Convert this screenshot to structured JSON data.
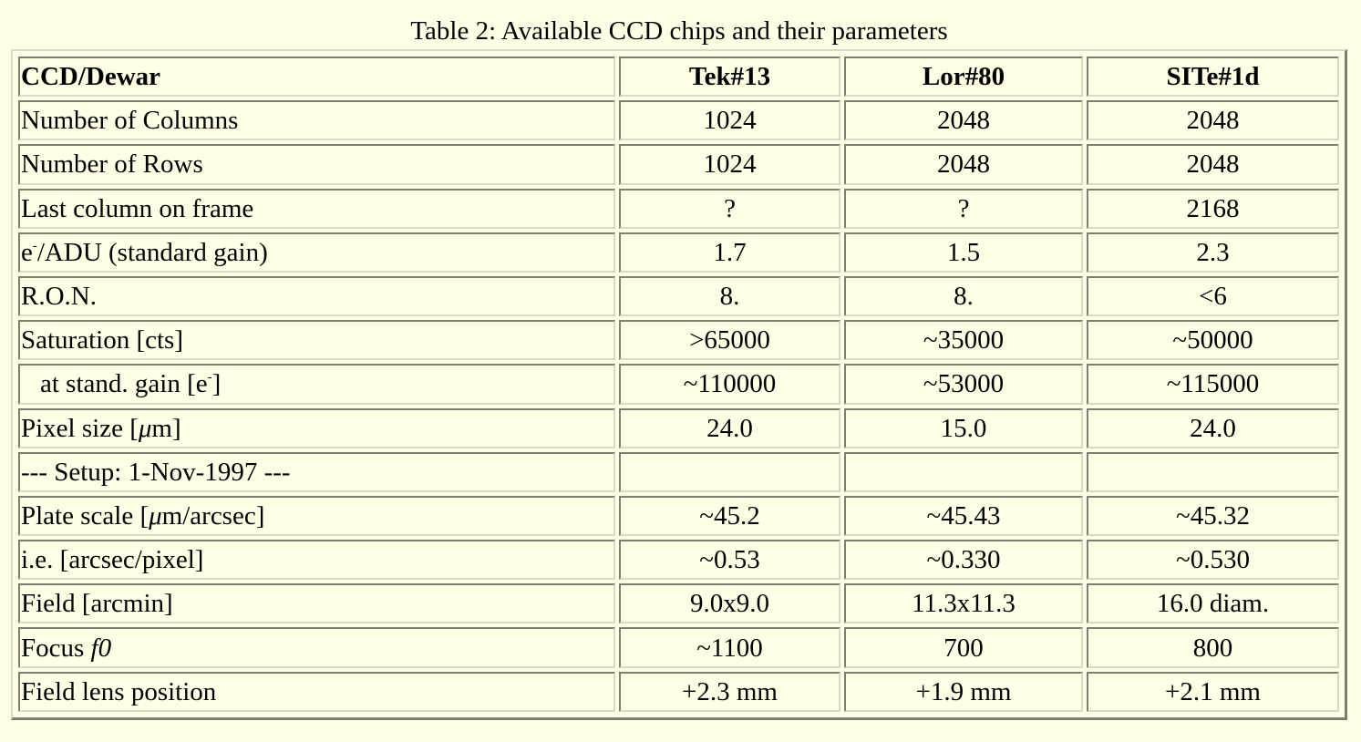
{
  "caption": "Table 2: Available CCD chips and their parameters",
  "header": {
    "label": "CCD/Dewar",
    "columns": [
      "Tek#13",
      "Lor#80",
      "SITe#1d"
    ]
  },
  "rows": [
    {
      "label": "Number of Columns",
      "values": [
        "1024",
        "2048",
        "2048"
      ]
    },
    {
      "label": "Number of Rows",
      "values": [
        "1024",
        "2048",
        "2048"
      ]
    },
    {
      "label": "Last column on frame",
      "values": [
        "?",
        "?",
        "2168"
      ]
    },
    {
      "label_pre": "e",
      "label_sup": "-",
      "label_post": "/ADU (standard gain)",
      "values": [
        "1.7",
        "1.5",
        "2.3"
      ]
    },
    {
      "label": "R.O.N.",
      "values": [
        "8.",
        "8.",
        "<6"
      ]
    },
    {
      "label": "Saturation [cts]",
      "values": [
        ">65000",
        "~35000",
        "~50000"
      ]
    },
    {
      "label_pre": "at stand. gain [e",
      "label_sup": "-",
      "label_post": "]",
      "values": [
        "~110000",
        "~53000",
        "~115000"
      ]
    },
    {
      "label_pre": "Pixel size [",
      "label_italic": "μ",
      "label_post": "m]",
      "values": [
        "24.0",
        "15.0",
        "24.0"
      ]
    },
    {
      "label": "--- Setup: 1-Nov-1997 ---",
      "values": [
        "",
        "",
        ""
      ]
    },
    {
      "label_pre": "Plate scale [",
      "label_italic": "μ",
      "label_post": "m/arcsec]",
      "values": [
        "~45.2",
        "~45.43",
        "~45.32"
      ]
    },
    {
      "label": "i.e. [arcsec/pixel]",
      "values": [
        "~0.53",
        "~0.330",
        "~0.530"
      ]
    },
    {
      "label": "Field [arcmin]",
      "values": [
        "9.0x9.0",
        "11.3x11.3",
        "16.0 diam."
      ]
    },
    {
      "label_pre": "Focus ",
      "label_italic": "f0",
      "label_post": "",
      "values": [
        "~1100",
        "700",
        "800"
      ]
    },
    {
      "label": "Field lens position",
      "values": [
        "+2.3 mm",
        "+1.9 mm",
        "+2.1 mm"
      ]
    }
  ]
}
